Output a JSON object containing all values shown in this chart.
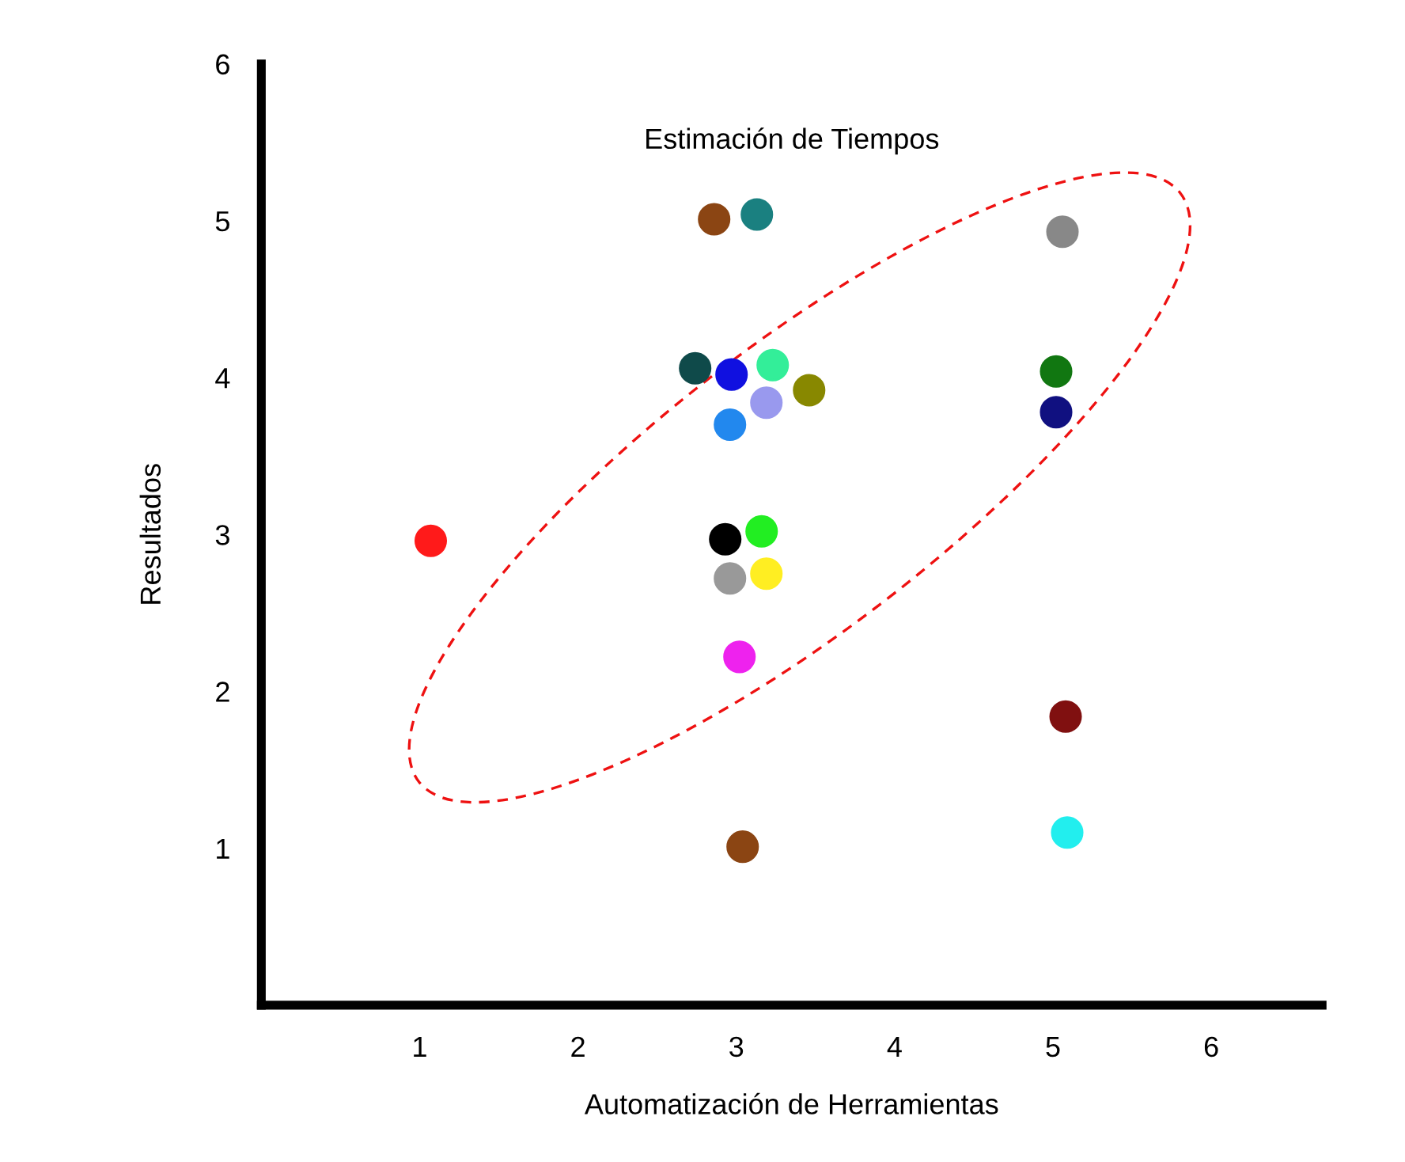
{
  "chart_data": {
    "type": "scatter",
    "title": "Estimación de Tiempos",
    "xlabel": "Automatización de Herramientas",
    "ylabel": "Resultados",
    "x": [
      1.07,
      2.86,
      3.13,
      5.06,
      2.74,
      2.97,
      3.23,
      3.46,
      3.19,
      2.96,
      5.02,
      5.02,
      2.93,
      3.16,
      2.96,
      3.19,
      3.02,
      5.08,
      3.04,
      5.09
    ],
    "values": [
      2.96,
      5.01,
      5.04,
      4.93,
      4.06,
      4.02,
      4.08,
      3.92,
      3.84,
      3.7,
      4.04,
      3.78,
      2.97,
      3.02,
      2.72,
      2.75,
      2.22,
      1.84,
      1.01,
      1.1
    ],
    "colors": [
      "#ff1a1a",
      "#8b4513",
      "#1a8080",
      "#888888",
      "#0f4a4a",
      "#1010e0",
      "#33ee99",
      "#888800",
      "#9999ee",
      "#2288ee",
      "#117711",
      "#101080",
      "#000000",
      "#22ee22",
      "#999999",
      "#ffee22",
      "#ee22ee",
      "#801010",
      "#8b4513",
      "#22eeee"
    ],
    "marker": "circle",
    "xlim": [
      0,
      6.7
    ],
    "ylim": [
      0,
      6
    ],
    "xticks": [
      1,
      2,
      3,
      4,
      5,
      6
    ],
    "yticks": [
      1,
      2,
      3,
      4,
      5,
      6
    ],
    "grid": false,
    "legend": false
  }
}
